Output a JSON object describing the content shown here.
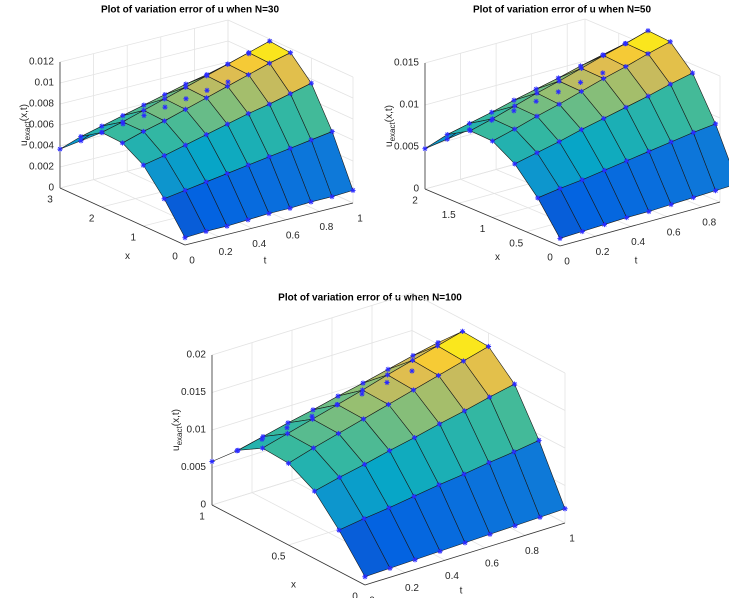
{
  "chart_data": [
    {
      "type": "surface",
      "title": "Plot of variation error of u when N=30",
      "xlabel": "x",
      "ylabel": "t",
      "zlabel": {
        "main": "u",
        "sub": "exact",
        "tail": "(x,t)"
      },
      "colormap": "parula",
      "marker_color": "#2a2aff",
      "grid": true,
      "x": [
        0,
        0.5,
        1,
        1.5,
        2,
        2.5,
        3
      ],
      "t": [
        0,
        0.125,
        0.25,
        0.375,
        0.5,
        0.625,
        0.75,
        0.875,
        1
      ],
      "z": [
        [
          0.0007,
          0.0008,
          0.0008,
          0.0009,
          0.001,
          0.001,
          0.0011,
          0.0011,
          0.0012
        ],
        [
          0.0035,
          0.0038,
          0.0041,
          0.0044,
          0.0047,
          0.005,
          0.0053,
          0.0056,
          0.0059
        ],
        [
          0.0058,
          0.0062,
          0.0067,
          0.0072,
          0.0077,
          0.0082,
          0.0086,
          0.0091,
          0.0096
        ],
        [
          0.007,
          0.0076,
          0.0081,
          0.0087,
          0.0093,
          0.0099,
          0.0105,
          0.0111,
          0.0116
        ],
        [
          0.0071,
          0.0076,
          0.0082,
          0.0088,
          0.0094,
          0.01,
          0.0106,
          0.0112,
          0.0118
        ],
        [
          0.0058,
          0.0063,
          0.0068,
          0.0073,
          0.0078,
          0.0083,
          0.0087,
          0.0092,
          0.0097
        ],
        [
          0.0037,
          0.004,
          0.0043,
          0.0046,
          0.0049,
          0.0052,
          0.0055,
          0.0058,
          0.0061
        ]
      ],
      "xlim": [
        0,
        3
      ],
      "tlim": [
        0,
        1
      ],
      "zlim": [
        0,
        0.012
      ],
      "xticks": [
        0,
        1,
        2,
        3
      ],
      "tticks": [
        0,
        0.2,
        0.4,
        0.6,
        0.8,
        1
      ],
      "zticks": [
        0,
        0.002,
        0.004,
        0.006,
        0.008,
        0.01,
        0.012
      ]
    },
    {
      "type": "surface",
      "title": "Plot of variation error of u when N=50",
      "xlabel": "x",
      "ylabel": "t",
      "zlabel": {
        "main": "u",
        "sub": "exact",
        "tail": "(x,t)"
      },
      "colormap": "parula",
      "marker_color": "#2a2aff",
      "grid": true,
      "x": [
        0,
        0.33,
        0.67,
        1,
        1.33,
        1.67,
        2
      ],
      "t": [
        0,
        0.125,
        0.25,
        0.375,
        0.5,
        0.625,
        0.75,
        0.875,
        1
      ],
      "z": [
        [
          0.0009,
          0.001,
          0.0011,
          0.0012,
          0.0012,
          0.0013,
          0.0014,
          0.0015,
          0.0016
        ],
        [
          0.0046,
          0.005,
          0.0053,
          0.0057,
          0.0061,
          0.0065,
          0.0069,
          0.0073,
          0.0076
        ],
        [
          0.0075,
          0.0081,
          0.0087,
          0.0094,
          0.01,
          0.0106,
          0.0112,
          0.0119,
          0.0125
        ],
        [
          0.0091,
          0.0098,
          0.0106,
          0.0113,
          0.0121,
          0.0129,
          0.0136,
          0.0144,
          0.0151
        ],
        [
          0.0092,
          0.0099,
          0.0107,
          0.0115,
          0.0122,
          0.013,
          0.0138,
          0.0145,
          0.0153
        ],
        [
          0.0076,
          0.0082,
          0.0088,
          0.0095,
          0.0101,
          0.0107,
          0.0114,
          0.012,
          0.0126
        ],
        [
          0.0048,
          0.0052,
          0.0056,
          0.006,
          0.0064,
          0.0068,
          0.0072,
          0.0076,
          0.008
        ]
      ],
      "xlim": [
        0,
        2
      ],
      "tlim": [
        0,
        0.9
      ],
      "zlim": [
        0,
        0.015
      ],
      "xticks": [
        0,
        0.5,
        1,
        1.5,
        2
      ],
      "tticks": [
        0,
        0.2,
        0.4,
        0.6,
        0.8
      ],
      "zticks": [
        0,
        0.005,
        0.01,
        0.015
      ]
    },
    {
      "type": "surface",
      "title": "Plot of variation error of u when N=100",
      "xlabel": "x",
      "ylabel": "t",
      "zlabel": {
        "main": "u",
        "sub": "exact",
        "tail": "(x,t)"
      },
      "colormap": "parula",
      "marker_color": "#2a2aff",
      "grid": true,
      "x": [
        0,
        0.17,
        0.33,
        0.5,
        0.67,
        0.83,
        1
      ],
      "t": [
        0,
        0.125,
        0.25,
        0.375,
        0.5,
        0.625,
        0.75,
        0.875,
        1
      ],
      "z": [
        [
          0.0011,
          0.0012,
          0.0013,
          0.0014,
          0.0015,
          0.0016,
          0.0017,
          0.0018,
          0.0019
        ],
        [
          0.0055,
          0.006,
          0.0064,
          0.0069,
          0.0074,
          0.0078,
          0.0083,
          0.0087,
          0.0092
        ],
        [
          0.009,
          0.0098,
          0.0105,
          0.0113,
          0.012,
          0.0128,
          0.0135,
          0.0143,
          0.015
        ],
        [
          0.0109,
          0.0119,
          0.0128,
          0.0137,
          0.0146,
          0.0155,
          0.0164,
          0.0173,
          0.0182
        ],
        [
          0.0111,
          0.012,
          0.0129,
          0.0138,
          0.0147,
          0.0157,
          0.0166,
          0.0175,
          0.0184
        ],
        [
          0.0091,
          0.0099,
          0.0107,
          0.0114,
          0.0122,
          0.0129,
          0.0137,
          0.0145,
          0.0152
        ],
        [
          0.0058,
          0.0062,
          0.0067,
          0.0072,
          0.0077,
          0.0082,
          0.0086,
          0.0091,
          0.0096
        ]
      ],
      "xlim": [
        0,
        1
      ],
      "tlim": [
        0,
        1
      ],
      "zlim": [
        0,
        0.02
      ],
      "xticks": [
        0,
        0.5,
        1
      ],
      "tticks": [
        0,
        0.2,
        0.4,
        0.6,
        0.8,
        1
      ],
      "zticks": [
        0,
        0.005,
        0.01,
        0.015,
        0.02
      ]
    }
  ]
}
